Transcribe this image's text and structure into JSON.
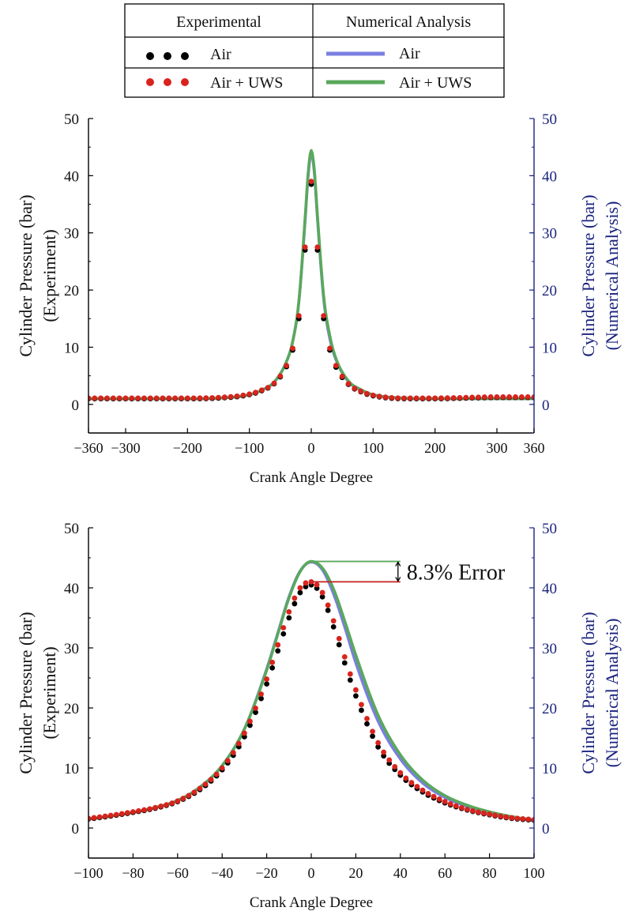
{
  "legend": {
    "headers": [
      "Experimental",
      "Numerical Analysis"
    ],
    "rows": [
      {
        "exp_label": "Air",
        "num_label": "Air",
        "exp_color": "#000000",
        "num_color": "#7b7fe0"
      },
      {
        "exp_label": "Air + UWS",
        "num_label": "Air + UWS",
        "exp_color": "#d9231d",
        "num_color": "#5aa85c"
      }
    ]
  },
  "chart_data": [
    {
      "type": "line",
      "xlabel": "Crank Angle Degree",
      "ylabel_left": [
        "Cylinder Pressure (bar)",
        "(Experiment)"
      ],
      "ylabel_right": [
        "Cylinder Pressure (bar)",
        "(Numerical Analysis)"
      ],
      "xlim": [
        -360,
        360
      ],
      "ylim": [
        -5,
        50
      ],
      "x_ticks": [
        -360,
        -300,
        -200,
        -100,
        0,
        100,
        200,
        300,
        360
      ],
      "y_ticks": [
        0,
        10,
        20,
        30,
        40,
        50
      ],
      "grid": false,
      "series": [
        {
          "name": "Air",
          "kind": "experimental",
          "color": "#000000",
          "x": [
            -360,
            -300,
            -200,
            -150,
            -100,
            -80,
            -60,
            -40,
            -30,
            -20,
            -10,
            -5,
            0,
            5,
            10,
            20,
            30,
            40,
            60,
            80,
            100,
            150,
            200,
            300,
            360
          ],
          "y": [
            1.0,
            1.0,
            1.0,
            1.1,
            1.7,
            2.4,
            3.6,
            6.6,
            9.5,
            15.0,
            27.0,
            34.5,
            38.5,
            35.0,
            27.0,
            15.0,
            9.5,
            6.5,
            3.5,
            2.2,
            1.5,
            1.0,
            1.0,
            1.2,
            1.2
          ]
        },
        {
          "name": "Air + UWS",
          "kind": "experimental",
          "color": "#d9231d",
          "x": [
            -360,
            -300,
            -200,
            -150,
            -100,
            -80,
            -60,
            -40,
            -30,
            -20,
            -10,
            -5,
            0,
            5,
            10,
            20,
            30,
            40,
            60,
            80,
            100,
            150,
            200,
            300,
            360
          ],
          "y": [
            1.1,
            1.1,
            1.1,
            1.2,
            1.8,
            2.5,
            3.7,
            6.8,
            9.8,
            15.5,
            27.5,
            35.0,
            39.0,
            35.5,
            27.5,
            15.5,
            9.8,
            6.8,
            3.6,
            2.3,
            1.6,
            1.1,
            1.1,
            1.3,
            1.3
          ]
        },
        {
          "name": "Air",
          "kind": "numerical",
          "color": "#7b7fe0",
          "x": [
            -360,
            -300,
            -200,
            -150,
            -100,
            -80,
            -60,
            -40,
            -30,
            -20,
            -10,
            -5,
            0,
            5,
            10,
            20,
            30,
            40,
            60,
            80,
            100,
            150,
            200,
            300,
            360
          ],
          "y": [
            1.0,
            1.0,
            1.0,
            1.1,
            1.7,
            2.5,
            3.9,
            7.5,
            11.0,
            18.0,
            32.0,
            40.0,
            44.0,
            40.5,
            32.5,
            18.5,
            11.5,
            7.8,
            4.0,
            2.5,
            1.7,
            1.1,
            1.0,
            1.0,
            1.0
          ]
        },
        {
          "name": "Air + UWS",
          "kind": "numerical",
          "color": "#5aa85c",
          "x": [
            -360,
            -300,
            -200,
            -150,
            -100,
            -80,
            -60,
            -40,
            -30,
            -20,
            -10,
            -5,
            0,
            5,
            10,
            20,
            30,
            40,
            60,
            80,
            100,
            150,
            200,
            300,
            360
          ],
          "y": [
            1.0,
            1.0,
            1.0,
            1.1,
            1.7,
            2.5,
            3.9,
            7.5,
            11.0,
            18.0,
            32.5,
            40.5,
            44.4,
            41.0,
            33.0,
            19.0,
            12.0,
            8.0,
            4.1,
            2.6,
            1.7,
            1.1,
            1.0,
            1.0,
            1.0
          ]
        }
      ]
    },
    {
      "type": "line",
      "xlabel": "Crank Angle Degree",
      "ylabel_left": [
        "Cylinder Pressure (bar)",
        "(Experiment)"
      ],
      "ylabel_right": [
        "Cylinder Pressure (bar)",
        "(Numerical Analysis)"
      ],
      "xlim": [
        -100,
        100
      ],
      "ylim": [
        -5,
        50
      ],
      "x_ticks": [
        -100,
        -80,
        -60,
        -40,
        -20,
        0,
        20,
        40,
        60,
        80,
        100
      ],
      "y_ticks": [
        0,
        10,
        20,
        30,
        40,
        50
      ],
      "grid": false,
      "annotation": {
        "text": "8.3% Error",
        "upper_value": 44.4,
        "lower_value": 41.0,
        "x_start": 0,
        "x_end": 40
      },
      "series": [
        {
          "name": "Air",
          "kind": "experimental",
          "color": "#000000",
          "x": [
            -100,
            -90,
            -80,
            -70,
            -60,
            -50,
            -40,
            -30,
            -20,
            -15,
            -10,
            -5,
            0,
            5,
            10,
            15,
            20,
            30,
            40,
            50,
            60,
            70,
            80,
            90,
            100
          ],
          "y": [
            1.5,
            2.0,
            2.6,
            3.3,
            4.4,
            6.4,
            9.7,
            15.2,
            24.0,
            29.5,
            35.0,
            39.2,
            40.5,
            38.5,
            33.5,
            27.5,
            22.0,
            13.5,
            8.8,
            6.0,
            4.2,
            3.0,
            2.2,
            1.6,
            1.3
          ]
        },
        {
          "name": "Air + UWS",
          "kind": "experimental",
          "color": "#d9231d",
          "x": [
            -100,
            -90,
            -80,
            -70,
            -60,
            -50,
            -40,
            -30,
            -20,
            -15,
            -10,
            -5,
            0,
            5,
            10,
            15,
            20,
            30,
            40,
            50,
            60,
            70,
            80,
            90,
            100
          ],
          "y": [
            1.6,
            2.1,
            2.7,
            3.4,
            4.5,
            6.6,
            10.0,
            15.8,
            24.8,
            30.5,
            36.0,
            40.0,
            41.0,
            39.2,
            34.5,
            28.5,
            23.0,
            14.2,
            9.2,
            6.3,
            4.4,
            3.1,
            2.3,
            1.7,
            1.4
          ]
        },
        {
          "name": "Air",
          "kind": "numerical",
          "color": "#7b7fe0",
          "x": [
            -100,
            -90,
            -80,
            -70,
            -60,
            -50,
            -40,
            -30,
            -20,
            -15,
            -10,
            -5,
            0,
            5,
            10,
            15,
            20,
            30,
            40,
            50,
            60,
            70,
            80,
            90,
            100
          ],
          "y": [
            1.5,
            2.0,
            2.6,
            3.4,
            4.6,
            6.8,
            10.4,
            16.5,
            26.5,
            32.5,
            38.5,
            42.8,
            44.3,
            43.0,
            39.0,
            33.5,
            27.5,
            17.8,
            11.5,
            7.5,
            5.1,
            3.6,
            2.5,
            1.8,
            1.2
          ]
        },
        {
          "name": "Air + UWS",
          "kind": "numerical",
          "color": "#5aa85c",
          "x": [
            -100,
            -90,
            -80,
            -70,
            -60,
            -50,
            -40,
            -30,
            -20,
            -15,
            -10,
            -5,
            0,
            5,
            10,
            15,
            20,
            30,
            40,
            50,
            60,
            70,
            80,
            90,
            100
          ],
          "y": [
            1.5,
            2.0,
            2.6,
            3.4,
            4.6,
            6.8,
            10.4,
            16.5,
            26.3,
            32.3,
            38.3,
            42.7,
            44.4,
            43.3,
            39.8,
            34.5,
            28.8,
            18.8,
            12.2,
            8.0,
            5.4,
            3.8,
            2.7,
            1.9,
            1.3
          ]
        }
      ]
    }
  ]
}
